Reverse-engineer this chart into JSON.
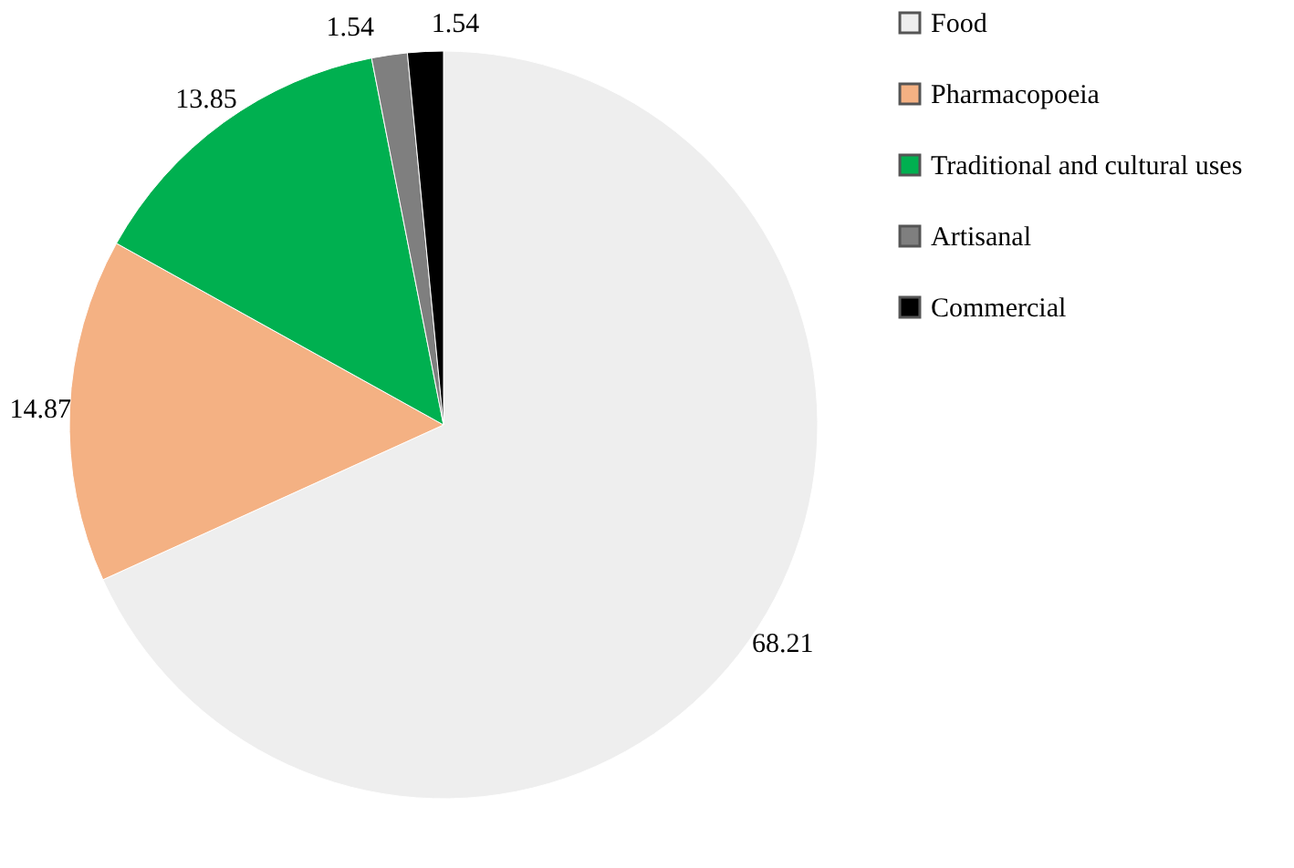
{
  "chart_data": {
    "type": "pie",
    "categories": [
      "Food",
      "Pharmacopoeia",
      "Traditional and cultural uses",
      "Artisanal",
      "Commercial"
    ],
    "values": [
      68.21,
      14.87,
      13.85,
      1.54,
      1.54
    ],
    "colors": [
      "#eeeeee",
      "#f4b183",
      "#00b050",
      "#7f7f7f",
      "#000000"
    ],
    "data_labels": true,
    "legend": "right"
  }
}
